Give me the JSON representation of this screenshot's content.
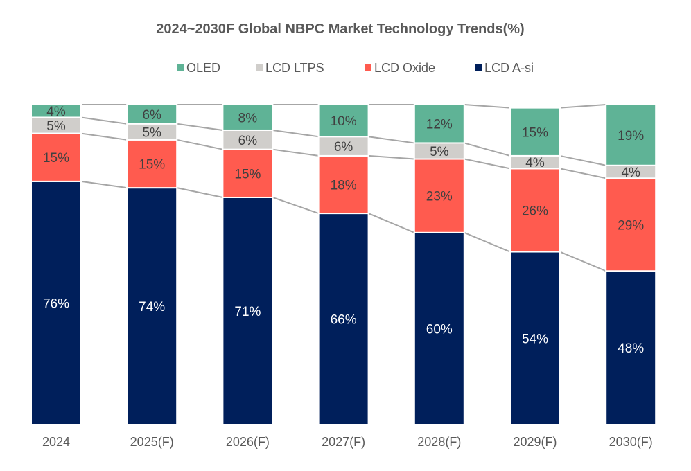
{
  "chart_data": {
    "type": "bar",
    "stacked": true,
    "title": "2024~2030F Global NBPC Market Technology Trends(%)",
    "categories": [
      "2024",
      "2025(F)",
      "2026(F)",
      "2027(F)",
      "2028(F)",
      "2029(F)",
      "2030(F)"
    ],
    "ylim": [
      0,
      100
    ],
    "grid": false,
    "legend_position": "top",
    "series_lines": true,
    "series": [
      {
        "name": "LCD A-si",
        "color": "#001f5b",
        "label_color": "#ffffff",
        "values": [
          76,
          74,
          71,
          66,
          60,
          54,
          48
        ]
      },
      {
        "name": "LCD Oxide",
        "color": "#ff5b4f",
        "label_color": "#404040",
        "values": [
          15,
          15,
          15,
          18,
          23,
          26,
          29
        ]
      },
      {
        "name": "LCD LTPS",
        "color": "#d0cecb",
        "label_color": "#404040",
        "values": [
          5,
          5,
          6,
          6,
          5,
          4,
          4
        ]
      },
      {
        "name": "OLED",
        "color": "#5fb396",
        "label_color": "#404040",
        "values": [
          4,
          6,
          8,
          10,
          12,
          15,
          19
        ]
      }
    ],
    "legend_order": [
      "OLED",
      "LCD LTPS",
      "LCD Oxide",
      "LCD A-si"
    ],
    "value_suffix": "%"
  }
}
